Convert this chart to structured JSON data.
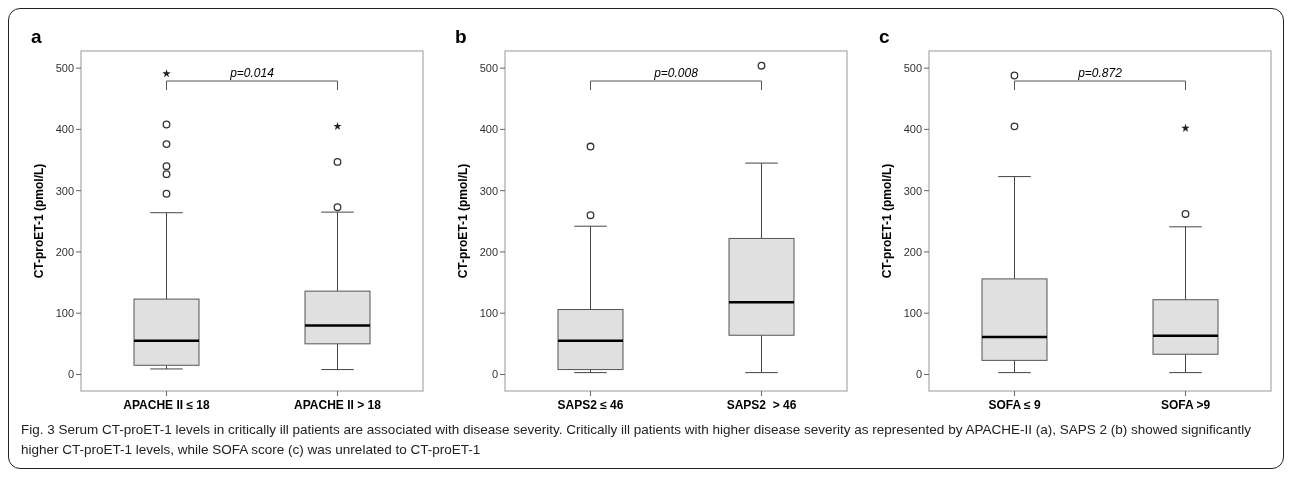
{
  "chart_data": [
    {
      "type": "box",
      "title": "a",
      "ylabel": "CT-proET-1 (pmol/L)",
      "categories": [
        "APACHE II ≤ 18",
        "APACHE II > 18"
      ],
      "ylim": [
        -27,
        528
      ],
      "yticks": [
        0,
        100,
        200,
        300,
        400,
        500
      ],
      "boxes": [
        {
          "low": 9,
          "q1": 15,
          "median": 55,
          "q3": 123,
          "high": 264,
          "outliers": [
            408,
            376,
            340,
            327,
            295
          ]
        },
        {
          "low": 8,
          "q1": 50,
          "median": 80,
          "q3": 136,
          "high": 265,
          "outliers": [
            347,
            273
          ]
        }
      ],
      "series": [
        {
          "type": "scatter",
          "marker": "star",
          "color": "#222222",
          "x": [
            "APACHE II ≤ 18",
            "APACHE II > 18"
          ],
          "values": [
            491,
            405
          ]
        }
      ],
      "annotations": [
        "p=0.014",
        "Fig. 3 Serum CT-proET-1 levels in critically ill patients are associated with disease severity. Critically ill patients with higher disease severity as represented by APACHE-II (a), SAPS 2 (b) showed significantly higher CT-proET-1 levels, while SOFA score (c) was unrelated to CT-proET-1"
      ]
    },
    {
      "type": "box",
      "title": "b",
      "ylabel": "CT-proET-1 (pmol/L)",
      "categories": [
        "SAPS2 ≤ 46",
        "SAPS2  > 46"
      ],
      "ylim": [
        -27,
        528
      ],
      "yticks": [
        0,
        100,
        200,
        300,
        400,
        500
      ],
      "boxes": [
        {
          "low": 3,
          "q1": 8,
          "median": 55,
          "q3": 106,
          "high": 242,
          "outliers": [
            260,
            372
          ]
        },
        {
          "low": 3,
          "q1": 64,
          "median": 118,
          "q3": 222,
          "high": 345,
          "outliers": [
            504
          ]
        }
      ],
      "annotations": [
        "p=0.008"
      ]
    },
    {
      "type": "box",
      "title": "c",
      "ylabel": "CT-proET-1 (pmol/L)",
      "categories": [
        "SOFA ≤ 9",
        "SOFA >9"
      ],
      "ylim": [
        -27,
        528
      ],
      "yticks": [
        0,
        100,
        200,
        300,
        400,
        500
      ],
      "boxes": [
        {
          "low": 3,
          "q1": 23,
          "median": 61,
          "q3": 156,
          "high": 323,
          "outliers": [
            488,
            405
          ]
        },
        {
          "low": 3,
          "q1": 33,
          "median": 63,
          "q3": 122,
          "high": 241,
          "outliers": [
            262
          ]
        }
      ],
      "series": [
        {
          "type": "scatter",
          "marker": "star",
          "color": "#222222",
          "x": [
            "SOFA ≤ 9",
            "SOFA >9"
          ],
          "values": [
            null,
            402
          ]
        }
      ],
      "annotations": [
        "p=0.872"
      ]
    }
  ]
}
